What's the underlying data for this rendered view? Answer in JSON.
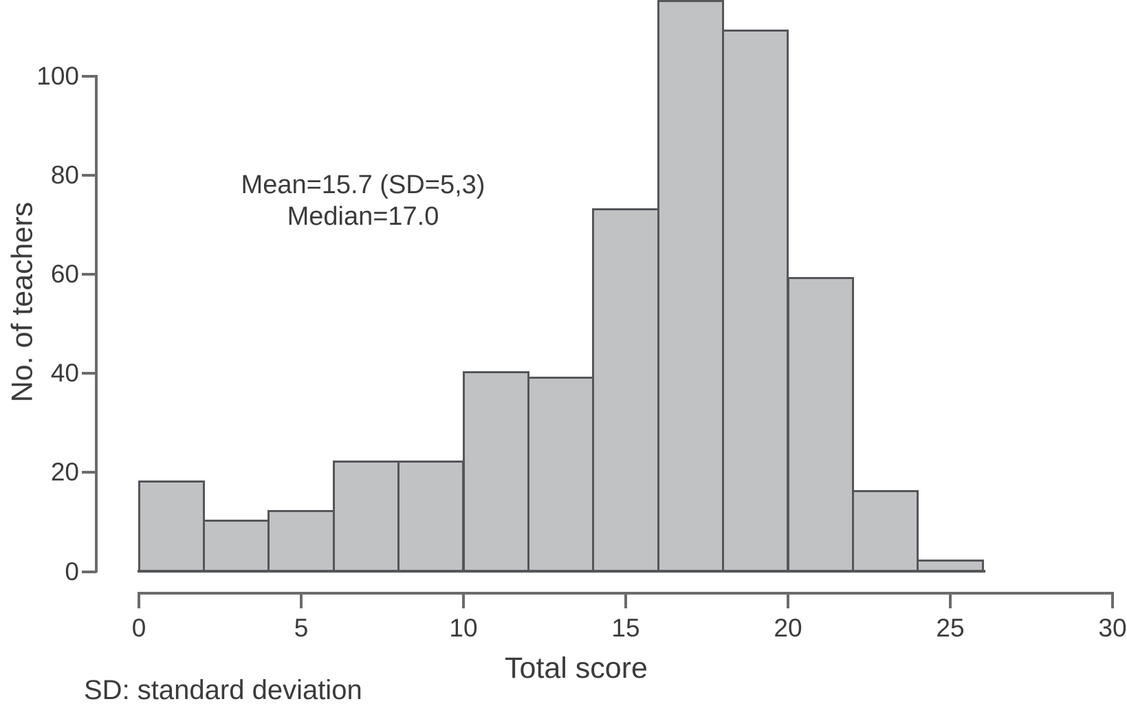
{
  "figure": {
    "ylabel": "No. of teachers",
    "xlabel": "Total score",
    "annotation_line1": "Mean=15.7 (SD=5,3)",
    "annotation_line2": "Median=17.0",
    "footnote": "SD: standard deviation"
  },
  "chart_data": {
    "type": "bar",
    "subtype": "histogram",
    "title": "",
    "xlabel": "Total score",
    "ylabel": "No. of teachers",
    "bin_edges": [
      0,
      2,
      4,
      6,
      8,
      10,
      12,
      14,
      16,
      18,
      20,
      22,
      24,
      26
    ],
    "values": [
      18,
      10,
      12,
      22,
      22,
      40,
      39,
      73,
      115,
      109,
      59,
      16,
      2
    ],
    "x_ticks": [
      0,
      5,
      10,
      15,
      20,
      25,
      30
    ],
    "y_ticks": [
      0,
      20,
      40,
      60,
      80,
      100
    ],
    "xlim": [
      0,
      30
    ],
    "ylim": [
      0,
      100
    ],
    "grid": false,
    "legend": "none",
    "annotations": [
      "Mean=15.7 (SD=5,3)",
      "Median=17.0"
    ],
    "colors": {
      "bar_fill": "#c1c2c4",
      "bar_edge": "#55565a",
      "axis": "#6a6b6d",
      "text": "#3a3b3d",
      "background": "#ffffff"
    }
  }
}
